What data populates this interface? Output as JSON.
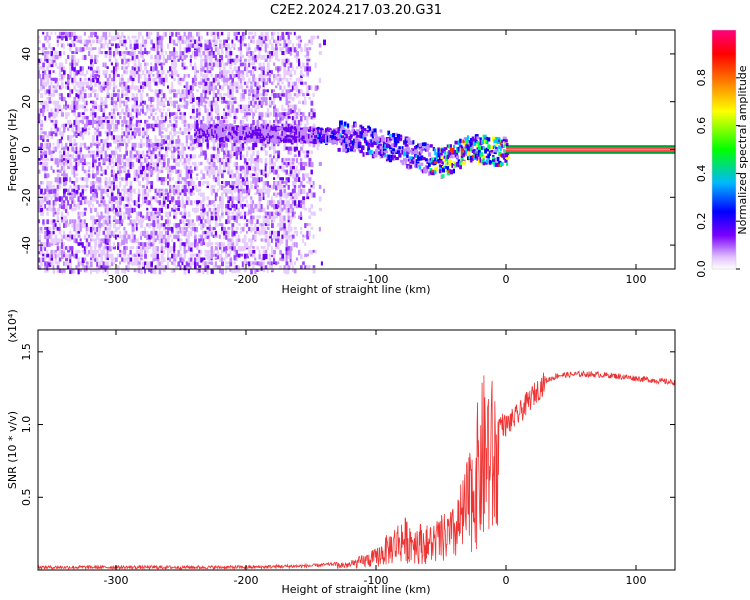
{
  "title": "C2E2.2024.217.03.20.G31",
  "chart_data": [
    {
      "type": "heatmap",
      "xlabel": "Height of straight line (km)",
      "ylabel": "Frequency (Hz)",
      "xlim": [
        -360,
        130
      ],
      "ylim": [
        -50,
        50
      ],
      "xticks": [
        -300,
        -200,
        -100,
        0,
        100
      ],
      "yticks": [
        -40,
        -20,
        0,
        20,
        40
      ],
      "colorbar": {
        "label": "Normalized spectral amplitude",
        "range": [
          0,
          1
        ],
        "ticks": [
          0.0,
          0.2,
          0.4,
          0.6,
          0.8
        ],
        "colors": [
          "#ffffff",
          "#d9b3ff",
          "#7a00ff",
          "#0000ff",
          "#00c8ff",
          "#00ff00",
          "#ffff00",
          "#ff8000",
          "#ff0000",
          "#ff0080"
        ]
      },
      "features": {
        "noise_region_x": [
          -360,
          -140
        ],
        "signal_ridge": [
          {
            "x": -240,
            "f": 8
          },
          {
            "x": -160,
            "f": 7
          },
          {
            "x": -120,
            "f": 6
          },
          {
            "x": -90,
            "f": 2
          },
          {
            "x": -70,
            "f": -2
          },
          {
            "x": -50,
            "f": -5
          },
          {
            "x": -30,
            "f": 1
          },
          {
            "x": -10,
            "f": 0
          },
          {
            "x": 0,
            "f": 0
          }
        ],
        "steady_tone": {
          "x": [
            0,
            130
          ],
          "f": 0,
          "amplitude": 0.95
        }
      }
    },
    {
      "type": "line",
      "xlabel": "Height of straight line (km)",
      "ylabel": "SNR (10 * v/v)",
      "yscale_label": "(x10⁴)",
      "xlim": [
        -360,
        130
      ],
      "ylim": [
        0,
        1.65
      ],
      "xticks": [
        -300,
        -200,
        -100,
        0,
        100
      ],
      "yticks": [
        0.5,
        1.0,
        1.5
      ],
      "color": "#ee3333",
      "series": [
        {
          "x": [
            -360,
            -300,
            -250,
            -200,
            -150,
            -120,
            -100,
            -80,
            -60,
            -40,
            -30,
            -20,
            -15,
            -10,
            0,
            10,
            20,
            30,
            40,
            60,
            80,
            100,
            120,
            130
          ],
          "y": [
            0.02,
            0.02,
            0.02,
            0.02,
            0.03,
            0.05,
            0.12,
            0.3,
            0.25,
            0.35,
            0.6,
            1.0,
            1.15,
            1.05,
            1.0,
            1.08,
            1.2,
            1.3,
            1.34,
            1.35,
            1.34,
            1.32,
            1.3,
            1.29
          ]
        }
      ]
    }
  ]
}
